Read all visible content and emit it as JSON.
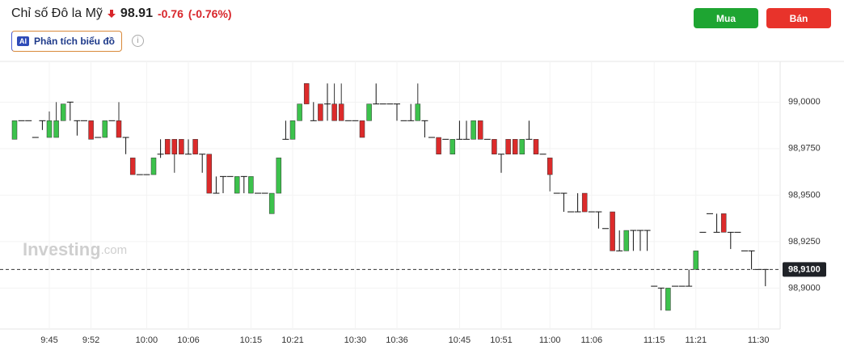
{
  "header": {
    "title": "Chỉ số Đô la Mỹ",
    "price": "98.91",
    "change": "-0.76",
    "change_pct": "(-0.76%)",
    "buy": "Mua",
    "sell": "Bán",
    "ai_badge": "AI",
    "ai_label": "Phân tích biểu đồ"
  },
  "chart_data": {
    "type": "candlestick",
    "watermark": "Investing",
    "watermark_suffix": ".com",
    "up_color": "#3cc24c",
    "down_color": "#dc2b2b",
    "flat_color": "#111111",
    "ylim": [
      98.878,
      99.021
    ],
    "yticks": [
      {
        "value": 99,
        "label": "99,0000"
      },
      {
        "value": 98.975,
        "label": "98,9750"
      },
      {
        "value": 98.95,
        "label": "98,9500"
      },
      {
        "value": 98.925,
        "label": "98,9250"
      },
      {
        "value": 98.9,
        "label": "98,9000"
      }
    ],
    "last_price": {
      "value": 98.91,
      "label": "98,9100"
    },
    "categories": [
      null,
      null,
      null,
      null,
      null,
      "9:45",
      null,
      null,
      null,
      null,
      null,
      "9:52",
      null,
      null,
      null,
      null,
      null,
      null,
      null,
      "10:00",
      null,
      null,
      null,
      null,
      null,
      "10:06",
      null,
      null,
      null,
      null,
      null,
      null,
      null,
      null,
      "10:15",
      null,
      null,
      null,
      null,
      null,
      "10:21",
      null,
      null,
      null,
      null,
      null,
      null,
      null,
      null,
      "10:30",
      null,
      null,
      null,
      null,
      null,
      "10:36",
      null,
      null,
      null,
      null,
      null,
      null,
      null,
      null,
      "10:45",
      null,
      null,
      null,
      null,
      null,
      "10:51",
      null,
      null,
      null,
      null,
      null,
      null,
      "11:00",
      null,
      null,
      null,
      null,
      null,
      "11:06",
      null,
      null,
      null,
      null,
      null,
      null,
      null,
      null,
      "11:15",
      null,
      null,
      null,
      null,
      null,
      "11:21",
      null,
      null,
      null,
      null,
      null,
      null,
      null,
      null,
      "11:30",
      null
    ],
    "open": [
      98.98,
      98.99,
      98.99,
      98.981,
      98.99,
      98.981,
      98.981,
      98.99,
      99.0,
      98.99,
      98.99,
      98.99,
      98.981,
      98.981,
      98.99,
      98.99,
      98.981,
      98.97,
      98.961,
      98.961,
      98.961,
      98.972,
      98.98,
      98.98,
      98.98,
      98.972,
      98.98,
      98.972,
      98.972,
      98.951,
      98.96,
      98.96,
      98.951,
      98.96,
      98.951,
      98.951,
      98.951,
      98.94,
      98.951,
      98.98,
      98.98,
      98.99,
      99.01,
      98.99,
      98.999,
      98.999,
      98.999,
      98.999,
      98.99,
      98.99,
      98.99,
      98.99,
      98.999,
      98.999,
      98.999,
      98.999,
      98.99,
      98.99,
      98.99,
      98.99,
      98.981,
      98.981,
      98.98,
      98.972,
      98.98,
      98.98,
      98.98,
      98.99,
      98.98,
      98.98,
      98.972,
      98.98,
      98.98,
      98.972,
      98.98,
      98.98,
      98.972,
      98.97,
      98.951,
      98.951,
      98.941,
      98.941,
      98.951,
      98.941,
      98.941,
      98.932,
      98.941,
      98.92,
      98.92,
      98.931,
      98.931,
      98.931,
      98.901,
      98.9,
      98.888,
      98.901,
      98.901,
      98.901,
      98.91,
      98.93,
      98.94,
      98.93,
      98.94,
      98.93,
      98.93,
      98.92,
      98.92,
      98.91,
      98.91
    ],
    "high": [
      98.99,
      98.99,
      98.99,
      98.981,
      98.99,
      98.995,
      99.0,
      98.999,
      99.0,
      98.99,
      98.99,
      98.99,
      98.981,
      98.99,
      98.99,
      99.0,
      98.981,
      98.97,
      98.961,
      98.961,
      98.97,
      98.98,
      98.98,
      98.98,
      98.98,
      98.98,
      98.98,
      98.972,
      98.972,
      98.96,
      98.96,
      98.96,
      98.96,
      98.96,
      98.96,
      98.951,
      98.951,
      98.951,
      98.97,
      98.99,
      98.99,
      98.999,
      99.01,
      99.0,
      98.999,
      99.01,
      99.01,
      99.01,
      98.99,
      98.99,
      98.99,
      98.999,
      99.01,
      98.999,
      98.999,
      98.999,
      98.99,
      98.999,
      99.01,
      98.99,
      98.981,
      98.981,
      98.98,
      98.98,
      98.99,
      98.99,
      98.99,
      98.99,
      98.98,
      98.98,
      98.972,
      98.98,
      98.98,
      98.98,
      98.99,
      98.98,
      98.972,
      98.97,
      98.951,
      98.951,
      98.941,
      98.951,
      98.951,
      98.941,
      98.941,
      98.932,
      98.941,
      98.931,
      98.931,
      98.931,
      98.931,
      98.931,
      98.901,
      98.9,
      98.9,
      98.901,
      98.901,
      98.91,
      98.92,
      98.93,
      98.94,
      98.94,
      98.94,
      98.93,
      98.93,
      98.92,
      98.92,
      98.91,
      98.91
    ],
    "low": [
      98.98,
      98.99,
      98.99,
      98.981,
      98.985,
      98.981,
      98.981,
      98.99,
      98.99,
      98.982,
      98.99,
      98.98,
      98.981,
      98.981,
      98.99,
      98.981,
      98.972,
      98.961,
      98.961,
      98.961,
      98.961,
      98.97,
      98.972,
      98.962,
      98.972,
      98.972,
      98.972,
      98.962,
      98.951,
      98.951,
      98.951,
      98.96,
      98.951,
      98.951,
      98.951,
      98.951,
      98.951,
      98.94,
      98.951,
      98.98,
      98.98,
      98.99,
      98.999,
      98.99,
      98.99,
      98.99,
      98.99,
      98.99,
      98.99,
      98.99,
      98.981,
      98.99,
      98.999,
      98.999,
      98.999,
      98.99,
      98.99,
      98.99,
      98.99,
      98.981,
      98.981,
      98.972,
      98.98,
      98.972,
      98.98,
      98.98,
      98.98,
      98.98,
      98.98,
      98.972,
      98.962,
      98.972,
      98.972,
      98.972,
      98.98,
      98.972,
      98.972,
      98.952,
      98.951,
      98.941,
      98.941,
      98.941,
      98.941,
      98.941,
      98.932,
      98.932,
      98.92,
      98.92,
      98.92,
      98.92,
      98.92,
      98.92,
      98.901,
      98.888,
      98.888,
      98.901,
      98.901,
      98.901,
      98.91,
      98.93,
      98.94,
      98.93,
      98.93,
      98.921,
      98.93,
      98.92,
      98.91,
      98.91,
      98.901
    ],
    "close": [
      98.99,
      98.99,
      98.99,
      98.981,
      98.99,
      98.99,
      98.99,
      98.999,
      99.0,
      98.99,
      98.99,
      98.98,
      98.981,
      98.99,
      98.99,
      98.981,
      98.981,
      98.961,
      98.961,
      98.961,
      98.97,
      98.972,
      98.972,
      98.972,
      98.972,
      98.972,
      98.972,
      98.972,
      98.951,
      98.951,
      98.96,
      98.96,
      98.96,
      98.96,
      98.96,
      98.951,
      98.951,
      98.951,
      98.97,
      98.98,
      98.99,
      98.999,
      98.999,
      98.99,
      98.99,
      98.999,
      98.99,
      98.99,
      98.99,
      98.99,
      98.981,
      98.999,
      98.999,
      98.999,
      98.999,
      98.999,
      98.99,
      98.99,
      98.999,
      98.99,
      98.981,
      98.972,
      98.98,
      98.98,
      98.98,
      98.98,
      98.99,
      98.98,
      98.98,
      98.972,
      98.972,
      98.972,
      98.972,
      98.98,
      98.98,
      98.972,
      98.972,
      98.961,
      98.951,
      98.951,
      98.941,
      98.941,
      98.941,
      98.941,
      98.941,
      98.932,
      98.92,
      98.92,
      98.931,
      98.931,
      98.931,
      98.931,
      98.901,
      98.9,
      98.9,
      98.901,
      98.901,
      98.901,
      98.92,
      98.93,
      98.94,
      98.93,
      98.93,
      98.93,
      98.93,
      98.92,
      98.92,
      98.91,
      98.91
    ]
  }
}
